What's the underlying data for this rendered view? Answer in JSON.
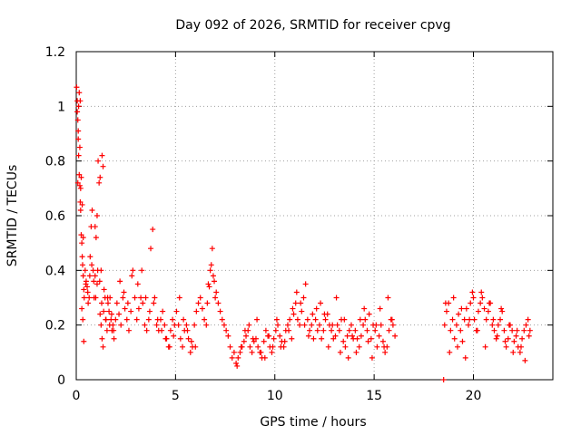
{
  "chart_data": {
    "type": "scatter",
    "title": "Day 092 of 2026, SRMTID for receiver cpvg",
    "xlabel": "GPS time / hours",
    "ylabel": "SRMTID / TECUs",
    "xlim": [
      0,
      24
    ],
    "ylim": [
      0,
      1.2
    ],
    "xticks": [
      0,
      5,
      10,
      15,
      20
    ],
    "xtick_labels": [
      "0",
      "5",
      "10",
      "15",
      "20"
    ],
    "yticks": [
      0,
      0.2,
      0.4,
      0.6,
      0.8,
      1.0,
      1.2
    ],
    "ytick_labels": [
      "0",
      "0.2",
      "0.4",
      "0.6",
      "0.8",
      "1",
      "1.2"
    ],
    "grid": true,
    "marker": "plus",
    "color": "#ff0000",
    "series": [
      {
        "name": "SRMTID",
        "x": [
          0.02,
          0.05,
          0.08,
          0.1,
          0.12,
          0.15,
          0.18,
          0.2,
          0.22,
          0.25,
          0.28,
          0.3,
          0.32,
          0.35,
          0.38,
          0.4,
          0.05,
          0.1,
          0.15,
          0.2,
          0.25,
          0.3,
          0.35,
          0.08,
          0.12,
          0.18,
          0.22,
          0.28,
          0.33,
          0.38,
          0.45,
          0.5,
          0.55,
          0.6,
          0.65,
          0.7,
          0.75,
          0.8,
          0.85,
          0.9,
          0.95,
          1.0,
          1.05,
          1.1,
          1.15,
          1.2,
          1.25,
          1.3,
          1.35,
          1.4,
          1.45,
          1.5,
          1.55,
          1.6,
          1.65,
          1.7,
          1.75,
          1.8,
          1.85,
          1.9,
          0.48,
          0.58,
          0.68,
          0.78,
          0.88,
          0.98,
          1.08,
          1.18,
          1.28,
          1.38,
          1.48,
          1.58,
          1.68,
          1.78,
          1.88,
          1.98,
          2.05,
          2.15,
          2.25,
          2.35,
          2.45,
          2.55,
          2.65,
          2.75,
          2.85,
          2.95,
          3.05,
          3.15,
          3.25,
          3.35,
          3.45,
          3.55,
          3.65,
          3.75,
          3.85,
          3.95,
          4.05,
          4.15,
          4.25,
          4.35,
          4.45,
          4.55,
          4.65,
          4.75,
          4.85,
          4.95,
          3.1,
          3.3,
          3.5,
          3.7,
          3.9,
          4.1,
          4.3,
          4.5,
          4.7,
          4.9,
          2.2,
          2.4,
          2.6,
          2.8,
          1.2,
          1.3,
          1.25,
          1.35,
          0.95,
          1.05,
          5.05,
          5.15,
          5.25,
          5.35,
          5.45,
          5.55,
          5.65,
          5.75,
          5.85,
          5.95,
          6.05,
          6.15,
          6.25,
          6.35,
          6.45,
          6.55,
          6.65,
          6.75,
          6.85,
          6.95,
          7.05,
          7.15,
          7.25,
          7.35,
          7.45,
          7.55,
          7.65,
          7.75,
          7.85,
          7.95,
          6.8,
          6.9,
          7.0,
          6.7,
          6.6,
          5.2,
          5.4,
          5.6,
          5.8,
          6.0,
          8.05,
          8.15,
          8.25,
          8.35,
          8.45,
          8.55,
          8.65,
          8.75,
          8.85,
          8.95,
          9.05,
          9.15,
          9.25,
          9.35,
          9.45,
          9.55,
          9.65,
          9.75,
          9.85,
          9.95,
          8.1,
          8.3,
          8.5,
          8.7,
          8.9,
          9.1,
          9.3,
          9.5,
          9.7,
          9.9,
          10.05,
          10.15,
          10.25,
          10.35,
          10.45,
          10.55,
          10.65,
          10.75,
          10.85,
          10.95,
          11.05,
          11.15,
          11.25,
          11.35,
          11.45,
          11.55,
          11.65,
          11.75,
          11.85,
          11.95,
          10.1,
          10.3,
          10.5,
          10.7,
          10.9,
          11.1,
          11.3,
          11.5,
          11.7,
          11.9,
          12.05,
          12.15,
          12.25,
          12.35,
          12.45,
          12.55,
          12.65,
          12.75,
          12.85,
          12.95,
          13.05,
          13.15,
          13.25,
          13.35,
          13.45,
          13.55,
          13.65,
          13.75,
          13.85,
          13.95,
          12.1,
          12.3,
          12.5,
          12.7,
          12.9,
          13.1,
          13.3,
          13.5,
          13.7,
          13.9,
          14.05,
          14.15,
          14.25,
          14.35,
          14.45,
          14.55,
          14.65,
          14.75,
          14.85,
          14.95,
          15.05,
          15.15,
          15.25,
          15.35,
          15.45,
          15.55,
          15.65,
          15.75,
          15.85,
          15.95,
          16.05,
          14.1,
          14.3,
          14.5,
          14.7,
          14.9,
          15.1,
          15.3,
          15.5,
          15.7,
          15.9,
          18.5,
          18.55,
          18.65,
          18.75,
          18.85,
          18.95,
          19.05,
          19.15,
          19.25,
          19.35,
          19.45,
          19.55,
          19.65,
          19.75,
          19.85,
          19.95,
          20.05,
          20.15,
          20.25,
          20.35,
          20.45,
          20.55,
          20.65,
          20.75,
          20.85,
          20.95,
          21.05,
          21.15,
          21.25,
          21.35,
          21.45,
          21.55,
          21.65,
          21.75,
          21.85,
          21.95,
          22.05,
          22.15,
          22.25,
          22.35,
          22.45,
          22.55,
          22.65,
          22.75,
          22.85,
          18.6,
          18.8,
          19.0,
          19.2,
          19.4,
          19.6,
          19.8,
          20.0,
          20.2,
          20.4,
          20.6,
          20.8,
          21.0,
          21.2,
          21.4,
          21.6,
          21.8,
          22.0,
          22.2,
          22.4,
          22.6,
          22.8
        ],
        "y": [
          1.07,
          1.02,
          0.95,
          0.88,
          0.82,
          0.75,
          0.71,
          0.65,
          0.62,
          0.53,
          0.5,
          0.45,
          0.42,
          0.38,
          0.33,
          0.3,
          0.98,
          0.91,
          1.05,
          1.02,
          0.74,
          0.64,
          0.52,
          0.72,
          1.0,
          0.85,
          0.7,
          0.26,
          0.22,
          0.14,
          0.4,
          0.36,
          0.34,
          0.28,
          0.3,
          0.45,
          0.56,
          0.62,
          0.4,
          0.3,
          0.38,
          0.52,
          0.35,
          0.8,
          0.72,
          0.24,
          0.2,
          0.15,
          0.12,
          0.33,
          0.3,
          0.22,
          0.18,
          0.28,
          0.25,
          0.3,
          0.22,
          0.18,
          0.2,
          0.15,
          0.35,
          0.32,
          0.38,
          0.42,
          0.36,
          0.3,
          0.4,
          0.36,
          0.28,
          0.25,
          0.22,
          0.3,
          0.2,
          0.24,
          0.18,
          0.22,
          0.28,
          0.24,
          0.2,
          0.3,
          0.26,
          0.22,
          0.18,
          0.25,
          0.4,
          0.3,
          0.22,
          0.26,
          0.3,
          0.28,
          0.2,
          0.18,
          0.22,
          0.48,
          0.55,
          0.3,
          0.2,
          0.18,
          0.22,
          0.25,
          0.2,
          0.15,
          0.12,
          0.18,
          0.22,
          0.2,
          0.35,
          0.4,
          0.3,
          0.25,
          0.28,
          0.22,
          0.18,
          0.15,
          0.12,
          0.16,
          0.36,
          0.32,
          0.28,
          0.38,
          0.74,
          0.82,
          0.4,
          0.78,
          0.56,
          0.6,
          0.25,
          0.2,
          0.15,
          0.12,
          0.18,
          0.2,
          0.15,
          0.1,
          0.12,
          0.2,
          0.25,
          0.28,
          0.3,
          0.26,
          0.22,
          0.2,
          0.35,
          0.4,
          0.48,
          0.36,
          0.32,
          0.28,
          0.25,
          0.22,
          0.2,
          0.18,
          0.16,
          0.12,
          0.08,
          0.1,
          0.42,
          0.38,
          0.3,
          0.34,
          0.28,
          0.3,
          0.22,
          0.18,
          0.14,
          0.12,
          0.06,
          0.08,
          0.1,
          0.12,
          0.14,
          0.16,
          0.18,
          0.12,
          0.1,
          0.14,
          0.15,
          0.12,
          0.1,
          0.08,
          0.14,
          0.18,
          0.16,
          0.12,
          0.1,
          0.15,
          0.05,
          0.12,
          0.18,
          0.2,
          0.15,
          0.22,
          0.1,
          0.08,
          0.16,
          0.12,
          0.18,
          0.2,
          0.16,
          0.14,
          0.12,
          0.18,
          0.2,
          0.22,
          0.15,
          0.24,
          0.28,
          0.22,
          0.2,
          0.25,
          0.3,
          0.35,
          0.22,
          0.18,
          0.2,
          0.15,
          0.22,
          0.12,
          0.14,
          0.18,
          0.26,
          0.32,
          0.28,
          0.2,
          0.16,
          0.24,
          0.22,
          0.18,
          0.2,
          0.15,
          0.18,
          0.22,
          0.24,
          0.2,
          0.18,
          0.15,
          0.16,
          0.2,
          0.18,
          0.22,
          0.14,
          0.12,
          0.16,
          0.18,
          0.2,
          0.15,
          0.26,
          0.28,
          0.24,
          0.12,
          0.2,
          0.3,
          0.1,
          0.22,
          0.08,
          0.16,
          0.18,
          0.15,
          0.12,
          0.16,
          0.2,
          0.22,
          0.18,
          0.24,
          0.15,
          0.2,
          0.18,
          0.12,
          0.16,
          0.2,
          0.14,
          0.1,
          0.12,
          0.18,
          0.22,
          0.2,
          0.16,
          0.1,
          0.22,
          0.26,
          0.14,
          0.08,
          0.2,
          0.26,
          0.12,
          0.3,
          0.22,
          0.0,
          0.2,
          0.25,
          0.28,
          0.18,
          0.22,
          0.15,
          0.2,
          0.24,
          0.18,
          0.14,
          0.22,
          0.26,
          0.2,
          0.28,
          0.32,
          0.22,
          0.18,
          0.25,
          0.28,
          0.3,
          0.26,
          0.22,
          0.25,
          0.28,
          0.2,
          0.18,
          0.15,
          0.2,
          0.22,
          0.25,
          0.18,
          0.12,
          0.15,
          0.2,
          0.18,
          0.14,
          0.16,
          0.12,
          0.1,
          0.15,
          0.18,
          0.2,
          0.22,
          0.18,
          0.28,
          0.1,
          0.3,
          0.12,
          0.26,
          0.08,
          0.22,
          0.3,
          0.18,
          0.32,
          0.12,
          0.28,
          0.22,
          0.16,
          0.26,
          0.14,
          0.2,
          0.1,
          0.18,
          0.12,
          0.07,
          0.16
        ]
      }
    ]
  }
}
